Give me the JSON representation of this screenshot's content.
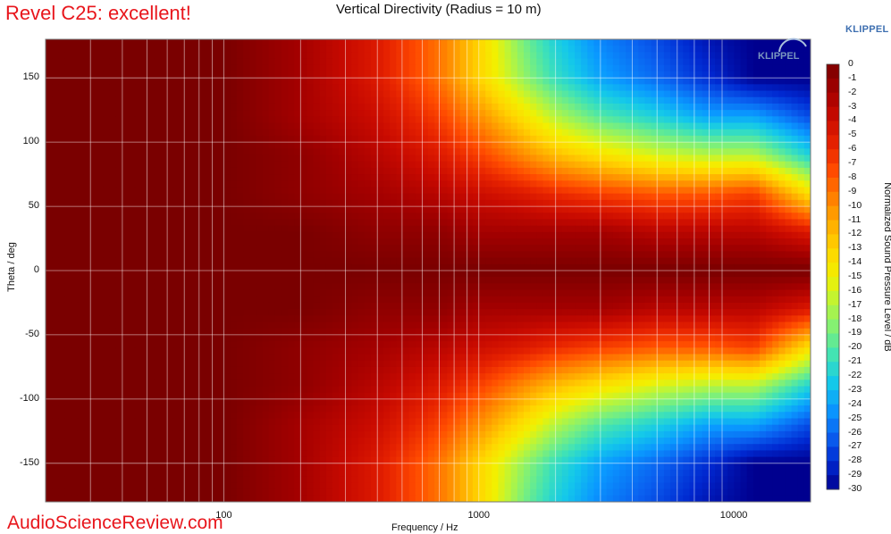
{
  "header": {
    "review_title": "Revel C25: excellent!",
    "klippel_corner": "KLIPPEL",
    "watermark": "AudioScienceReview.com",
    "plot_logo": "KLIPPEL"
  },
  "colors": {
    "review_title": "#e8161c",
    "watermark": "#e8161c",
    "klippel": "#3e6fb0",
    "colormap": [
      "#7a0000",
      "#a20000",
      "#c80a00",
      "#e62200",
      "#ff4b00",
      "#ff7e00",
      "#ffac00",
      "#ffd600",
      "#f2f000",
      "#b9f53b",
      "#7df07a",
      "#3fe2b7",
      "#14c8ea",
      "#0a98ff",
      "#0a60f0",
      "#0028d0",
      "#00008f"
    ]
  },
  "chart_data": {
    "type": "heatmap",
    "title": "Vertical Directivity (Radius = 10 m)",
    "xlabel": "Frequency / Hz",
    "ylabel": "Theta / deg",
    "x_scale": "log",
    "xlim": [
      20,
      20000
    ],
    "ylim": [
      -180,
      180
    ],
    "x_ticks": [
      {
        "value": 100,
        "label": "100"
      },
      {
        "value": 1000,
        "label": "1000"
      },
      {
        "value": 10000,
        "label": "10000"
      }
    ],
    "y_ticks": [
      {
        "value": 150,
        "label": "150"
      },
      {
        "value": 100,
        "label": "100"
      },
      {
        "value": 50,
        "label": "50"
      },
      {
        "value": 0,
        "label": "0"
      },
      {
        "value": -50,
        "label": "-50"
      },
      {
        "value": -100,
        "label": "-100"
      },
      {
        "value": -150,
        "label": "-150"
      }
    ],
    "grid": true,
    "colorbar": {
      "label": "Normalized Sound Pressure Level / dB",
      "range": [
        -30,
        0
      ],
      "ticks": [
        "0",
        "-1",
        "-2",
        "-3",
        "-4",
        "-5",
        "-6",
        "-7",
        "-8",
        "-9",
        "-10",
        "-11",
        "-12",
        "-13",
        "-14",
        "-15",
        "-16",
        "-17",
        "-18",
        "-19",
        "-20",
        "-21",
        "-22",
        "-23",
        "-24",
        "-25",
        "-26",
        "-27",
        "-28",
        "-29",
        "-30"
      ],
      "placement": "right"
    },
    "frequencies_hz": [
      20,
      100,
      200,
      400,
      700,
      1000,
      1500,
      2000,
      3000,
      5000,
      8000,
      12000,
      20000
    ],
    "angles_deg": [
      0,
      30,
      60,
      90,
      120,
      150,
      180
    ],
    "levels_db": [
      [
        0,
        0,
        0,
        0,
        0,
        0,
        0,
        0,
        0,
        0,
        0,
        0,
        0
      ],
      [
        0,
        0,
        0,
        -1,
        -1,
        -2,
        -2,
        -2,
        -2,
        -3,
        -3,
        -3,
        -5
      ],
      [
        0,
        0,
        -1,
        -2,
        -3,
        -4,
        -5,
        -6,
        -7,
        -8,
        -8,
        -7,
        -14
      ],
      [
        0,
        0,
        -1,
        -3,
        -5,
        -7,
        -10,
        -12,
        -14,
        -16,
        -17,
        -17,
        -22
      ],
      [
        0,
        0,
        -2,
        -4,
        -7,
        -10,
        -14,
        -17,
        -20,
        -22,
        -24,
        -24,
        -27
      ],
      [
        0,
        0,
        -2,
        -5,
        -9,
        -13,
        -18,
        -21,
        -24,
        -26,
        -28,
        -30,
        -30
      ],
      [
        0,
        0,
        -2,
        -5,
        -9,
        -13,
        -19,
        -22,
        -25,
        -27,
        -29,
        -30,
        -30
      ]
    ]
  }
}
